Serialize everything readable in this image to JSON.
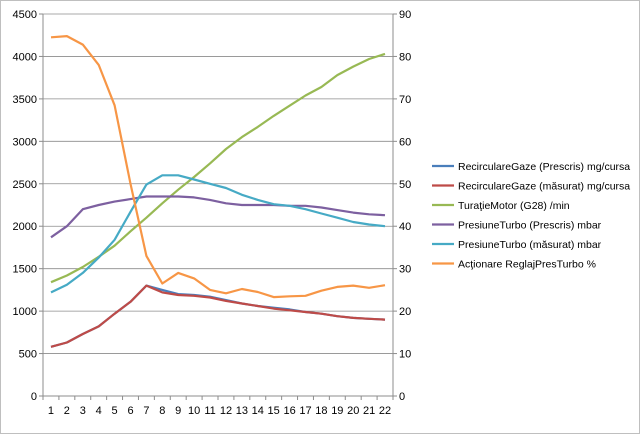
{
  "chart_data": {
    "type": "line",
    "title": "",
    "x": [
      1,
      2,
      3,
      4,
      5,
      6,
      7,
      8,
      9,
      10,
      11,
      12,
      13,
      14,
      15,
      16,
      17,
      18,
      19,
      20,
      21,
      22
    ],
    "ylim": [
      0,
      4500
    ],
    "yticks": [
      0,
      500,
      1000,
      1500,
      2000,
      2500,
      3000,
      3500,
      4000,
      4500
    ],
    "y2lim": [
      0,
      90
    ],
    "y2ticks": [
      0,
      10,
      20,
      30,
      40,
      50,
      60,
      70,
      80,
      90
    ],
    "legend_position": "right",
    "series": [
      {
        "name": "RecirculareGaze (Prescris)  mg/cursa",
        "axis": "left",
        "color": "#4a7ebb",
        "values": [
          580,
          630,
          730,
          820,
          970,
          1110,
          1300,
          1250,
          1200,
          1190,
          1170,
          1130,
          1090,
          1060,
          1040,
          1020,
          990,
          970,
          940,
          920,
          910,
          900
        ]
      },
      {
        "name": "RecirculareGaze (măsurat)  mg/cursa",
        "axis": "left",
        "color": "#be4b48",
        "values": [
          580,
          630,
          730,
          820,
          970,
          1110,
          1300,
          1220,
          1190,
          1180,
          1160,
          1120,
          1090,
          1060,
          1030,
          1010,
          990,
          970,
          940,
          920,
          910,
          900
        ]
      },
      {
        "name": "TuraţieMotor (G28)  /min",
        "axis": "left",
        "color": "#98b954",
        "values": [
          1340,
          1420,
          1520,
          1640,
          1770,
          1940,
          2100,
          2270,
          2430,
          2580,
          2740,
          2910,
          3050,
          3170,
          3300,
          3420,
          3540,
          3640,
          3780,
          3880,
          3970,
          4030
        ]
      },
      {
        "name": "PresiuneTurbo (Prescris)  mbar",
        "axis": "left",
        "color": "#7d60a0",
        "values": [
          1870,
          2000,
          2200,
          2250,
          2290,
          2320,
          2350,
          2350,
          2350,
          2340,
          2310,
          2270,
          2250,
          2250,
          2250,
          2240,
          2240,
          2220,
          2190,
          2160,
          2140,
          2130
        ]
      },
      {
        "name": "PresiuneTurbo (măsurat)  mbar",
        "axis": "left",
        "color": "#46aac5",
        "values": [
          1220,
          1310,
          1450,
          1630,
          1840,
          2170,
          2490,
          2600,
          2600,
          2550,
          2500,
          2450,
          2370,
          2310,
          2260,
          2240,
          2200,
          2150,
          2100,
          2050,
          2020,
          2000
        ]
      },
      {
        "name": "Acţionare ReglajPresTurbo  %",
        "axis": "right",
        "color": "#f79646",
        "values": [
          84.5,
          84.8,
          82.8,
          78.0,
          68.5,
          50.0,
          33.0,
          26.5,
          29.0,
          27.7,
          25.0,
          24.2,
          25.2,
          24.5,
          23.3,
          23.5,
          23.6,
          24.8,
          25.7,
          26.0,
          25.5,
          26.1
        ]
      }
    ]
  }
}
